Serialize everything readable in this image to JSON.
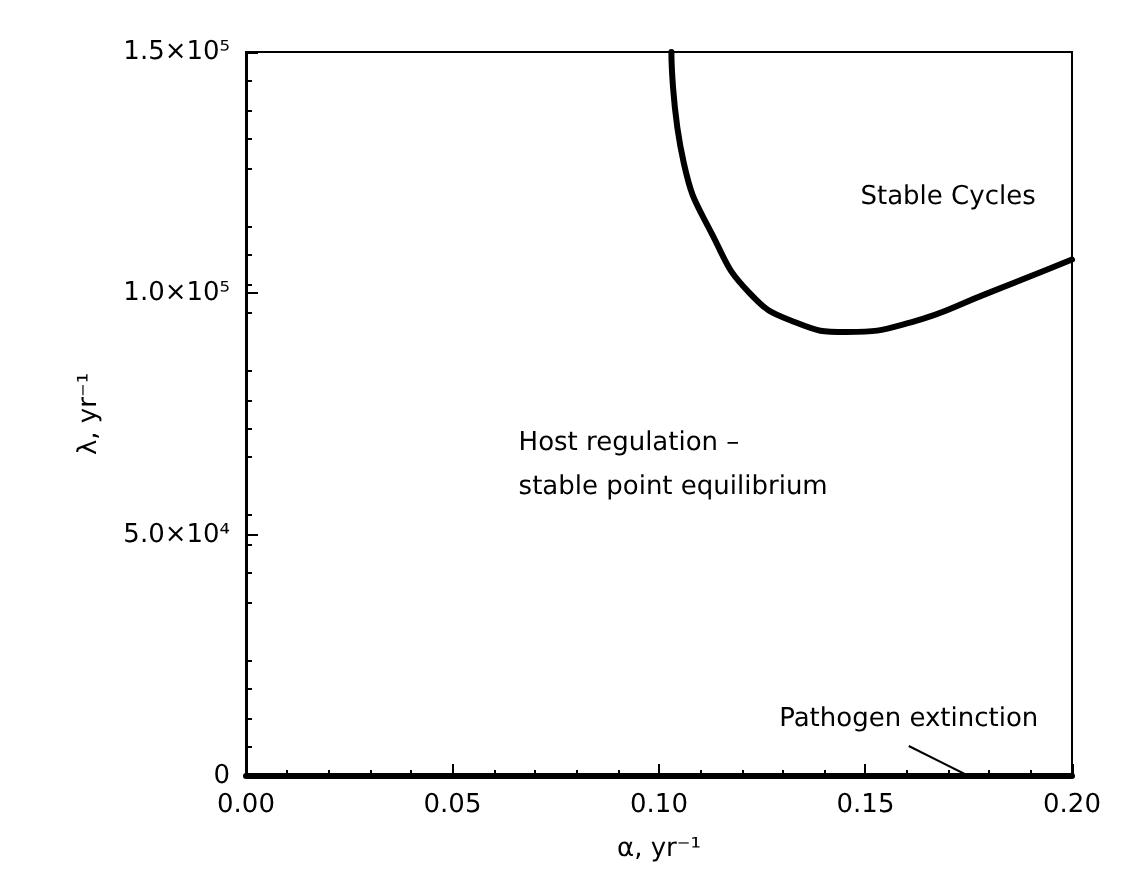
{
  "chart_data": {
    "type": "line",
    "xlabel": "α, yr⁻¹",
    "ylabel": "λ, yr⁻¹",
    "xlim": [
      0,
      0.2
    ],
    "xticks": [
      {
        "value": 0,
        "label": "0.00"
      },
      {
        "value": 0.05,
        "label": "0.05"
      },
      {
        "value": 0.1,
        "label": "0.10"
      },
      {
        "value": 0.15,
        "label": "0.15"
      },
      {
        "value": 0.2,
        "label": "0.20"
      }
    ],
    "ylim": [
      0,
      150000
    ],
    "yticks": [
      {
        "value": 0,
        "label": "0"
      },
      {
        "value": 50000,
        "label": "5.0×10⁴"
      },
      {
        "value": 100000,
        "label": "1.0×10⁵"
      },
      {
        "value": 150000,
        "label": "1.5×10⁵"
      }
    ],
    "series": [
      {
        "color": "#000000",
        "x": [
          0.103,
          0.106,
          0.113,
          0.122,
          0.133,
          0.1455,
          0.161,
          0.1795,
          0.2
        ],
        "values": [
          150000,
          127000,
          112000,
          100000,
          94000,
          92000,
          94000,
          100000,
          107000
        ]
      },
      {
        "color": "#000000",
        "x": [
          0,
          0.2
        ],
        "values": [
          0,
          0
        ]
      }
    ],
    "annotations": [
      "Stable Cycles",
      "Host regulation –\nstable point equilibrium",
      {
        "text": "Pathogen extinction",
        "x": 0.175,
        "y": 0
      }
    ],
    "grid": false,
    "marker": "none",
    "line_style": "solid"
  }
}
